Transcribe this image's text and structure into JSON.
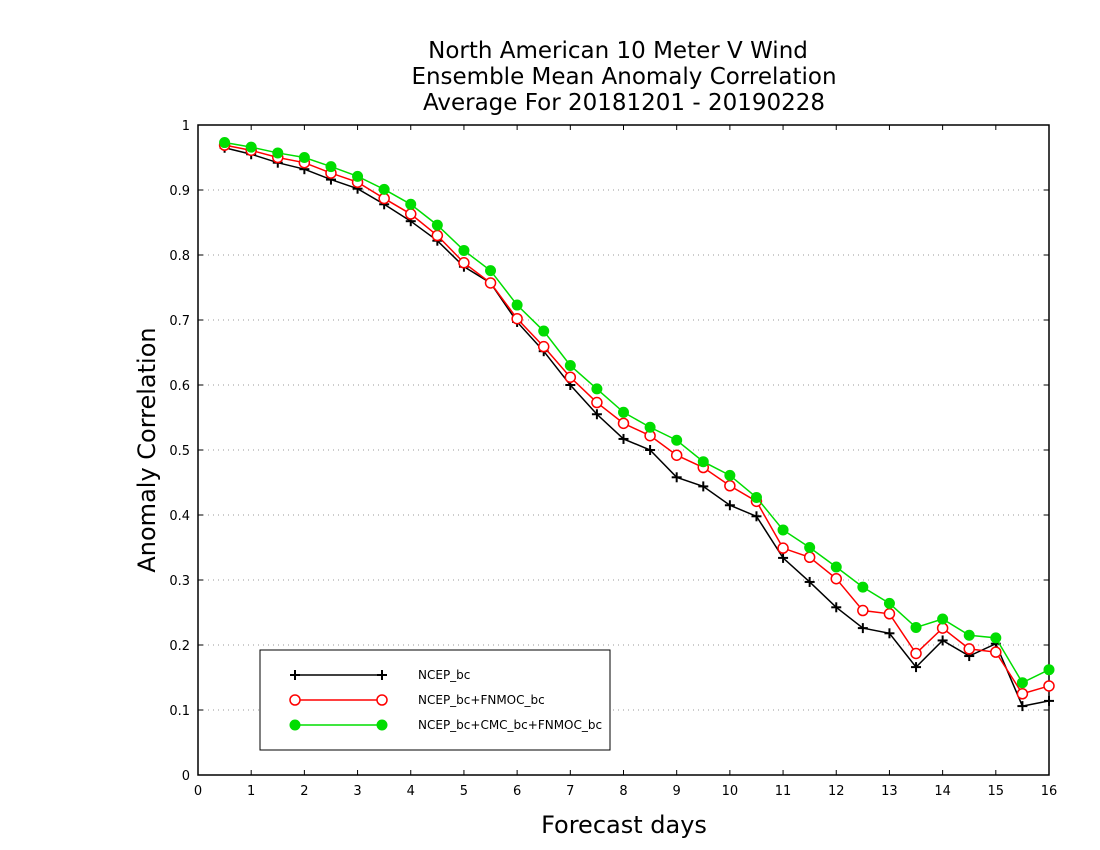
{
  "chart_data": {
    "type": "line",
    "title_lines": [
      "North American 10 Meter V Wind",
      "Ensemble Mean Anomaly Correlation",
      "Average For 20181201 - 20190228"
    ],
    "xlabel": "Forecast days",
    "ylabel": "Anomaly Correlation",
    "xlim": [
      0,
      16
    ],
    "ylim": [
      0,
      1
    ],
    "x_ticks": [
      "0",
      "1",
      "2",
      "3",
      "4",
      "5",
      "6",
      "7",
      "8",
      "9",
      "10",
      "11",
      "12",
      "13",
      "14",
      "15",
      "16"
    ],
    "y_ticks": [
      "0",
      "0.1",
      "0.2",
      "0.3",
      "0.4",
      "0.5",
      "0.6",
      "0.7",
      "0.8",
      "0.9",
      "1"
    ],
    "grid": "horizontal dotted",
    "legend_position": "bottom-left",
    "x": [
      0.5,
      1,
      1.5,
      2,
      2.5,
      3,
      3.5,
      4,
      4.5,
      5,
      5.5,
      6,
      6.5,
      7,
      7.5,
      8,
      8.5,
      9,
      9.5,
      10,
      10.5,
      11,
      11.5,
      12,
      12.5,
      13,
      13.5,
      14,
      14.5,
      15,
      15.5,
      16
    ],
    "series": [
      {
        "name": "NCEP_bc",
        "color": "#000000",
        "marker": "plus",
        "values": [
          0.965,
          0.955,
          0.942,
          0.932,
          0.916,
          0.902,
          0.878,
          0.852,
          0.822,
          0.782,
          0.757,
          0.697,
          0.652,
          0.6,
          0.555,
          0.517,
          0.5,
          0.458,
          0.444,
          0.415,
          0.398,
          0.334,
          0.297,
          0.258,
          0.226,
          0.218,
          0.166,
          0.207,
          0.183,
          0.202,
          0.106,
          0.114
        ]
      },
      {
        "name": "NCEP_bc+FNMOC_bc",
        "color": "#ff0000",
        "marker": "open-circle",
        "values": [
          0.969,
          0.961,
          0.95,
          0.942,
          0.926,
          0.912,
          0.887,
          0.863,
          0.83,
          0.788,
          0.757,
          0.702,
          0.659,
          0.612,
          0.573,
          0.541,
          0.522,
          0.492,
          0.473,
          0.445,
          0.421,
          0.349,
          0.335,
          0.302,
          0.253,
          0.248,
          0.187,
          0.226,
          0.194,
          0.189,
          0.125,
          0.137
        ]
      },
      {
        "name": "NCEP_bc+CMC_bc+FNMOC_bc",
        "color": "#00dd00",
        "marker": "filled-circle",
        "values": [
          0.973,
          0.966,
          0.957,
          0.95,
          0.936,
          0.921,
          0.901,
          0.878,
          0.846,
          0.807,
          0.776,
          0.723,
          0.683,
          0.63,
          0.594,
          0.558,
          0.535,
          0.515,
          0.482,
          0.461,
          0.427,
          0.377,
          0.35,
          0.32,
          0.289,
          0.264,
          0.227,
          0.24,
          0.215,
          0.211,
          0.142,
          0.162
        ]
      }
    ]
  }
}
